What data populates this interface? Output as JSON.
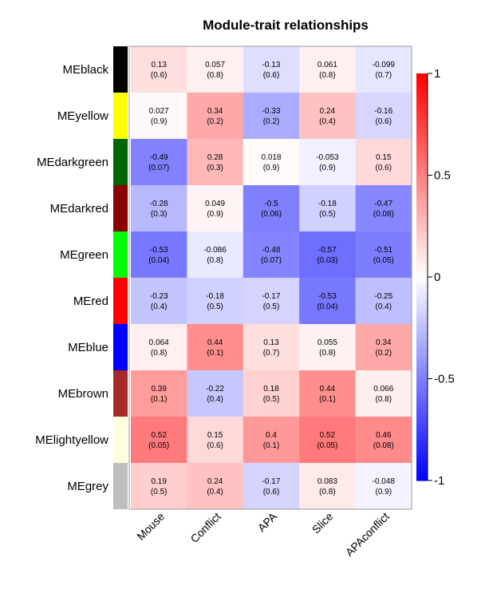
{
  "chart_data": {
    "type": "heatmap",
    "title": "Module-trait relationships",
    "rows": [
      "MEblack",
      "MEyellow",
      "MEdarkgreen",
      "MEdarkred",
      "MEgreen",
      "MEred",
      "MEblue",
      "MEbrown",
      "MElightyellow",
      "MEgrey"
    ],
    "row_colors": [
      "#000000",
      "#ffff00",
      "#006400",
      "#8b0000",
      "#00ff00",
      "#ff0000",
      "#0000ff",
      "#a52a2a",
      "#ffffe0",
      "#bebebe"
    ],
    "columns": [
      "Mouse",
      "Conflict",
      "APA",
      "Slice",
      "APAconflict"
    ],
    "values": [
      [
        0.13,
        0.057,
        -0.13,
        0.061,
        -0.099
      ],
      [
        0.027,
        0.34,
        -0.33,
        0.24,
        -0.16
      ],
      [
        -0.49,
        0.28,
        0.018,
        -0.053,
        0.15
      ],
      [
        -0.28,
        0.049,
        -0.5,
        -0.18,
        -0.47
      ],
      [
        -0.53,
        -0.086,
        -0.48,
        -0.57,
        -0.51
      ],
      [
        -0.23,
        -0.18,
        -0.17,
        -0.53,
        -0.25
      ],
      [
        0.064,
        0.44,
        0.13,
        0.055,
        0.34
      ],
      [
        0.39,
        -0.22,
        0.18,
        0.44,
        0.066
      ],
      [
        0.52,
        0.15,
        0.4,
        0.52,
        0.46
      ],
      [
        0.19,
        0.24,
        -0.17,
        0.083,
        -0.048
      ]
    ],
    "pvalues": [
      [
        "(0.6)",
        "(0.8)",
        "(0.6)",
        "(0.8)",
        "(0.7)"
      ],
      [
        "(0.9)",
        "(0.2)",
        "(0.2)",
        "(0.4)",
        "(0.6)"
      ],
      [
        "(0.07)",
        "(0.3)",
        "(0.9)",
        "(0.9)",
        "(0.6)"
      ],
      [
        "(0.3)",
        "(0.9)",
        "(0.06)",
        "(0.5)",
        "(0.08)"
      ],
      [
        "(0.04)",
        "(0.8)",
        "(0.07)",
        "(0.03)",
        "(0.05)"
      ],
      [
        "(0.4)",
        "(0.5)",
        "(0.5)",
        "(0.04)",
        "(0.4)"
      ],
      [
        "(0.8)",
        "(0.1)",
        "(0.7)",
        "(0.8)",
        "(0.2)"
      ],
      [
        "(0.1)",
        "(0.4)",
        "(0.5)",
        "(0.1)",
        "(0.8)"
      ],
      [
        "(0.05)",
        "(0.6)",
        "(0.1)",
        "(0.05)",
        "(0.08)"
      ],
      [
        "(0.5)",
        "(0.4)",
        "(0.6)",
        "(0.8)",
        "(0.9)"
      ]
    ],
    "color_scale": {
      "range": [
        -1,
        1
      ],
      "low": "#0000ff",
      "mid": "#ffffff",
      "high": "#ff0000"
    },
    "colorbar_ticks": [
      "1",
      "0.5",
      "0",
      "-0.5",
      "-1"
    ],
    "legend_position": "right"
  }
}
